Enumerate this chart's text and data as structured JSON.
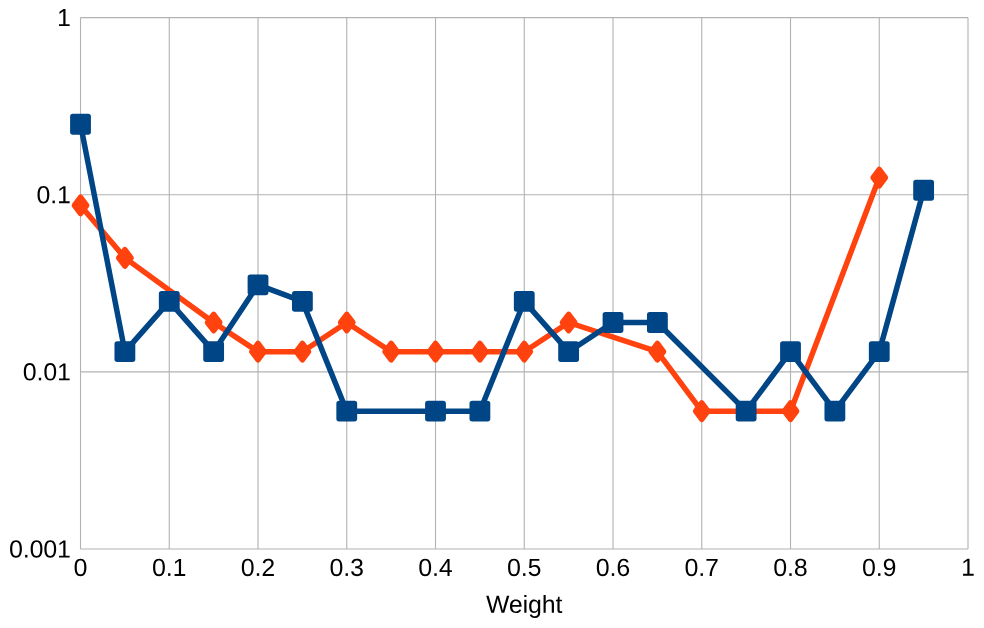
{
  "chart_data": {
    "type": "line",
    "xlabel": "Weight",
    "log": true,
    "grid": true,
    "line_style": "solid",
    "xlim": [
      0,
      1
    ],
    "ylim": [
      0.001,
      1
    ],
    "xticks": [
      0,
      0.1,
      0.2,
      0.3,
      0.4,
      0.5,
      0.6,
      0.7,
      0.8,
      0.9,
      1
    ],
    "yticks": [
      0.001,
      0.01,
      0.1,
      1
    ],
    "series": [
      {
        "color": "#ff420e",
        "marker": "diamond",
        "x": [
          0,
          0.05,
          0.1,
          0.15,
          0.2,
          0.25,
          0.3,
          0.35,
          0.4,
          0.45,
          0.5,
          0.55,
          0.6,
          0.65,
          0.7,
          0.75,
          0.8,
          0.9
        ],
        "values": [
          0.087,
          0.044,
          null,
          0.019,
          0.013,
          0.013,
          0.019,
          0.013,
          0.013,
          0.013,
          0.013,
          0.019,
          null,
          0.013,
          0.006,
          null,
          0.006,
          0.125
        ]
      },
      {
        "color": "#004586",
        "marker": "square",
        "x": [
          0,
          0.05,
          0.1,
          0.15,
          0.2,
          0.25,
          0.3,
          0.4,
          0.45,
          0.5,
          0.55,
          0.6,
          0.65,
          0.75,
          0.8,
          0.85,
          0.9,
          0.95
        ],
        "values": [
          0.25,
          0.013,
          0.025,
          0.013,
          0.031,
          0.025,
          0.006,
          0.006,
          0.006,
          0.025,
          0.013,
          0.019,
          0.019,
          0.006,
          0.013,
          0.006,
          0.013,
          0.106
        ]
      }
    ]
  }
}
